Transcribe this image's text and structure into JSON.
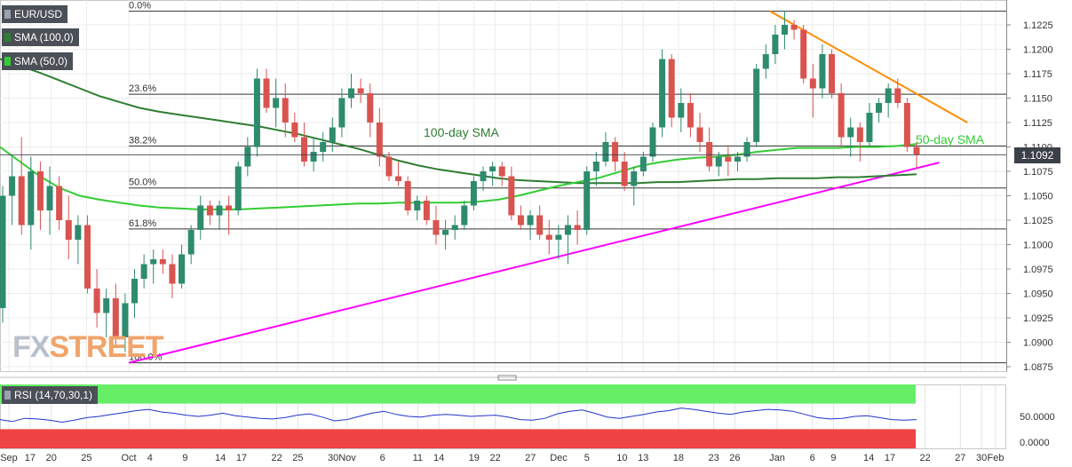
{
  "symbol": "EUR/USD",
  "indicators": [
    {
      "label": "SMA (100,0)",
      "color": "#2f7d32"
    },
    {
      "label": "SMA (50,0)",
      "color": "#33cc33"
    }
  ],
  "current_price": "1.1092",
  "watermark": {
    "part1": "FX",
    "part2": "STREET"
  },
  "rsi": {
    "label": "RSI (14,70,30,1)",
    "ticks": [
      "50.0000",
      "0.0000"
    ],
    "overbought": 70,
    "oversold": 30,
    "values": [
      45,
      42,
      47,
      46,
      44,
      41,
      44,
      48,
      50,
      53,
      56,
      59,
      61,
      57,
      55,
      52,
      50,
      52,
      55,
      51,
      49,
      47,
      46,
      48,
      52,
      54,
      49,
      43,
      45,
      50,
      55,
      58,
      53,
      50,
      49,
      52,
      53,
      52,
      50,
      51,
      52,
      49,
      45,
      44,
      47,
      54,
      58,
      60,
      55,
      49,
      47,
      50,
      53,
      57,
      59,
      63,
      61,
      58,
      55,
      53,
      57,
      59,
      61,
      60,
      58,
      53,
      48,
      46,
      47,
      50,
      51,
      48,
      45,
      44,
      45
    ]
  },
  "chart_data": {
    "type": "candlestick",
    "title": "EUR/USD",
    "y_ticks": [
      "1.1225",
      "1.1200",
      "1.1175",
      "1.1150",
      "1.1125",
      "1.1100",
      "1.1075",
      "1.1050",
      "1.1025",
      "1.1000",
      "1.0975",
      "1.0950",
      "1.0925",
      "1.0900",
      "1.0875"
    ],
    "ylim": [
      1.0869,
      1.1255
    ],
    "x_labels": [
      "Sep",
      "17",
      "20",
      "25",
      "Oct",
      "4",
      "9",
      "14",
      "17",
      "22",
      "25",
      "30",
      "Nov",
      "6",
      "11",
      "14",
      "19",
      "22",
      "27",
      "Dec",
      "5",
      "10",
      "13",
      "18",
      "23",
      "26",
      "Jan",
      "6",
      "9",
      "14",
      "17",
      "22",
      "27",
      "30",
      "Feb"
    ],
    "fib_levels": [
      {
        "label": "0.0%",
        "value": 1.1239
      },
      {
        "label": "23.6%",
        "value": 1.1154
      },
      {
        "label": "38.2%",
        "value": 1.1101
      },
      {
        "label": "50.0%",
        "value": 1.1058
      },
      {
        "label": "61.8%",
        "value": 1.1016
      },
      {
        "label": "100.0%",
        "value": 1.0879
      }
    ],
    "annotations": [
      {
        "text": "100-day SMA",
        "color": "#2f7d32"
      },
      {
        "text": "50-day SMA",
        "color": "#33cc33"
      }
    ],
    "trendlines": [
      {
        "name": "support",
        "color": "#ff00ff",
        "from": [
          "2019-10-01",
          1.0879
        ],
        "to": [
          "2020-01-24",
          1.1084
        ]
      },
      {
        "name": "resistance",
        "color": "#ff8c00",
        "from": [
          "2019-12-31",
          1.1239
        ],
        "to": [
          "2020-01-28",
          1.1125
        ]
      }
    ],
    "candles": [
      [
        1.0935,
        1.106,
        1.092,
        1.105
      ],
      [
        1.105,
        1.109,
        1.102,
        1.107
      ],
      [
        1.107,
        1.111,
        1.101,
        1.102
      ],
      [
        1.102,
        1.109,
        1.0995,
        1.1075
      ],
      [
        1.1075,
        1.1085,
        1.1015,
        1.1035
      ],
      [
        1.1035,
        1.108,
        1.101,
        1.106
      ],
      [
        1.106,
        1.107,
        1.1015,
        1.1025
      ],
      [
        1.1025,
        1.105,
        1.0985,
        1.1005
      ],
      [
        1.1005,
        1.103,
        1.098,
        1.102
      ],
      [
        1.102,
        1.103,
        1.095,
        1.0955
      ],
      [
        1.0955,
        1.0975,
        1.0915,
        1.093
      ],
      [
        1.093,
        1.0955,
        1.0905,
        1.0945
      ],
      [
        1.0945,
        1.096,
        1.0895,
        1.0905
      ],
      [
        1.0905,
        1.095,
        1.089,
        1.094
      ],
      [
        1.094,
        1.0975,
        1.0925,
        1.0965
      ],
      [
        1.0965,
        1.099,
        1.0955,
        1.098
      ],
      [
        1.098,
        1.0995,
        1.096,
        1.0985
      ],
      [
        1.0985,
        1.0995,
        1.097,
        1.098
      ],
      [
        1.098,
        1.099,
        1.0945,
        1.096
      ],
      [
        1.096,
        1.1,
        1.0955,
        1.099
      ],
      [
        1.099,
        1.102,
        1.098,
        1.1015
      ],
      [
        1.1015,
        1.105,
        1.1005,
        1.104
      ],
      [
        1.104,
        1.1045,
        1.102,
        1.103
      ],
      [
        1.103,
        1.1045,
        1.1015,
        1.104
      ],
      [
        1.104,
        1.105,
        1.101,
        1.1035
      ],
      [
        1.1035,
        1.1085,
        1.103,
        1.108
      ],
      [
        1.108,
        1.111,
        1.107,
        1.11
      ],
      [
        1.11,
        1.118,
        1.109,
        1.117
      ],
      [
        1.117,
        1.118,
        1.1135,
        1.114
      ],
      [
        1.114,
        1.117,
        1.112,
        1.115
      ],
      [
        1.115,
        1.1165,
        1.111,
        1.1125
      ],
      [
        1.1125,
        1.1135,
        1.1105,
        1.111
      ],
      [
        1.111,
        1.1125,
        1.108,
        1.1085
      ],
      [
        1.1085,
        1.111,
        1.1075,
        1.1095
      ],
      [
        1.1095,
        1.1115,
        1.1085,
        1.1105
      ],
      [
        1.1105,
        1.113,
        1.1095,
        1.112
      ],
      [
        1.112,
        1.116,
        1.111,
        1.115
      ],
      [
        1.115,
        1.1175,
        1.114,
        1.116
      ],
      [
        1.116,
        1.117,
        1.1145,
        1.1155
      ],
      [
        1.1155,
        1.1165,
        1.111,
        1.1125
      ],
      [
        1.1125,
        1.114,
        1.108,
        1.109
      ],
      [
        1.109,
        1.1095,
        1.1065,
        1.107
      ],
      [
        1.107,
        1.1085,
        1.106,
        1.1065
      ],
      [
        1.1065,
        1.107,
        1.103,
        1.1035
      ],
      [
        1.1035,
        1.105,
        1.1025,
        1.1045
      ],
      [
        1.1045,
        1.105,
        1.102,
        1.1025
      ],
      [
        1.1025,
        1.104,
        1.1,
        1.101
      ],
      [
        1.101,
        1.1025,
        1.0995,
        1.1015
      ],
      [
        1.1015,
        1.103,
        1.1005,
        1.102
      ],
      [
        1.102,
        1.1045,
        1.1015,
        1.104
      ],
      [
        1.104,
        1.107,
        1.1035,
        1.1065
      ],
      [
        1.1065,
        1.108,
        1.1055,
        1.1075
      ],
      [
        1.1075,
        1.1085,
        1.106,
        1.108
      ],
      [
        1.108,
        1.1085,
        1.106,
        1.107
      ],
      [
        1.107,
        1.108,
        1.1025,
        1.103
      ],
      [
        1.103,
        1.104,
        1.1015,
        1.102
      ],
      [
        1.102,
        1.1035,
        1.1005,
        1.103
      ],
      [
        1.103,
        1.104,
        1.1005,
        1.101
      ],
      [
        1.101,
        1.1025,
        1.099,
        1.1005
      ],
      [
        1.1005,
        1.102,
        1.0985,
        1.101
      ],
      [
        1.101,
        1.103,
        1.098,
        1.102
      ],
      [
        1.102,
        1.1035,
        1.1,
        1.1015
      ],
      [
        1.1015,
        1.108,
        1.101,
        1.1075
      ],
      [
        1.1075,
        1.1095,
        1.106,
        1.1085
      ],
      [
        1.1085,
        1.1115,
        1.108,
        1.1105
      ],
      [
        1.1105,
        1.111,
        1.1075,
        1.1085
      ],
      [
        1.1085,
        1.1095,
        1.1055,
        1.106
      ],
      [
        1.106,
        1.108,
        1.104,
        1.1075
      ],
      [
        1.1075,
        1.1095,
        1.107,
        1.109
      ],
      [
        1.109,
        1.1125,
        1.1085,
        1.112
      ],
      [
        1.112,
        1.12,
        1.111,
        1.119
      ],
      [
        1.119,
        1.1195,
        1.112,
        1.113
      ],
      [
        1.113,
        1.116,
        1.1115,
        1.1145
      ],
      [
        1.1145,
        1.1155,
        1.111,
        1.112
      ],
      [
        1.112,
        1.1135,
        1.1095,
        1.1105
      ],
      [
        1.1105,
        1.112,
        1.1075,
        1.108
      ],
      [
        1.108,
        1.1095,
        1.107,
        1.109
      ],
      [
        1.109,
        1.11,
        1.107,
        1.1085
      ],
      [
        1.1085,
        1.1095,
        1.1075,
        1.109
      ],
      [
        1.109,
        1.111,
        1.1085,
        1.1105
      ],
      [
        1.1105,
        1.1185,
        1.11,
        1.118
      ],
      [
        1.118,
        1.1205,
        1.117,
        1.1195
      ],
      [
        1.1195,
        1.1225,
        1.1185,
        1.1215
      ],
      [
        1.1215,
        1.1239,
        1.12,
        1.1225
      ],
      [
        1.1225,
        1.123,
        1.121,
        1.122
      ],
      [
        1.122,
        1.1225,
        1.1165,
        1.117
      ],
      [
        1.117,
        1.1185,
        1.113,
        1.116
      ],
      [
        1.116,
        1.1205,
        1.115,
        1.1195
      ],
      [
        1.1195,
        1.12,
        1.115,
        1.1155
      ],
      [
        1.1155,
        1.1165,
        1.11,
        1.111
      ],
      [
        1.111,
        1.113,
        1.109,
        1.112
      ],
      [
        1.112,
        1.1125,
        1.1085,
        1.1105
      ],
      [
        1.1105,
        1.1145,
        1.11,
        1.1135
      ],
      [
        1.1135,
        1.115,
        1.1125,
        1.1145
      ],
      [
        1.1145,
        1.1165,
        1.113,
        1.116
      ],
      [
        1.116,
        1.117,
        1.114,
        1.1145
      ],
      [
        1.1145,
        1.115,
        1.1095,
        1.11
      ],
      [
        1.11,
        1.1105,
        1.1078,
        1.1092
      ]
    ],
    "sma100": [
      1.119,
      1.1183,
      1.1176,
      1.1168,
      1.116,
      1.1152,
      1.1146,
      1.114,
      1.1136,
      1.1133,
      1.113,
      1.1127,
      1.1124,
      1.1121,
      1.1117,
      1.1113,
      1.1108,
      1.1103,
      1.1098,
      1.1092,
      1.1086,
      1.1081,
      1.1077,
      1.1074,
      1.1071,
      1.1068,
      1.1066,
      1.1065,
      1.1064,
      1.1063,
      1.1063,
      1.1063,
      1.1063,
      1.1064,
      1.1064,
      1.1065,
      1.1066,
      1.1067,
      1.1067,
      1.1068,
      1.1068,
      1.1068,
      1.1069,
      1.1069,
      1.107,
      1.1071,
      1.1072
    ],
    "sma50": [
      1.11,
      1.1085,
      1.107,
      1.1058,
      1.105,
      1.1046,
      1.1043,
      1.104,
      1.1038,
      1.1037,
      1.1036,
      1.1036,
      1.1036,
      1.1037,
      1.1038,
      1.1039,
      1.104,
      1.1041,
      1.1042,
      1.1042,
      1.1043,
      1.1043,
      1.1043,
      1.1043,
      1.1044,
      1.1046,
      1.105,
      1.1055,
      1.106,
      1.1064,
      1.1068,
      1.1074,
      1.108,
      1.1084,
      1.1087,
      1.1089,
      1.109,
      1.1092,
      1.1095,
      1.1097,
      1.1099,
      1.1099,
      1.1099,
      1.11,
      1.11,
      1.1101,
      1.1103
    ]
  }
}
